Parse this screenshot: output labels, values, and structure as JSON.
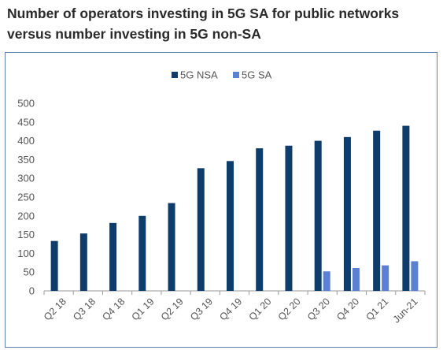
{
  "title_lines": [
    "Number of operators investing in 5G SA for public networks",
    "versus number investing in 5G non-SA"
  ],
  "colors": {
    "nsa": "#0e3d6b",
    "sa": "#5b7fd1",
    "gridline": "#d9d9d9",
    "axis": "#9a9a9a"
  },
  "chart_data": {
    "type": "bar",
    "title": "Number of operators investing in 5G SA for public networks versus number investing in 5G non-SA",
    "categories": [
      "Q2 18",
      "Q3 18",
      "Q4 18",
      "Q1 19",
      "Q2 19",
      "Q3 19",
      "Q4 19",
      "Q1 20",
      "Q2 20",
      "Q3 20",
      "Q4 20",
      "Q1 21",
      "Jun-21"
    ],
    "series": [
      {
        "name": "5G NSA",
        "values": [
          133,
          153,
          181,
          200,
          234,
          327,
          346,
          380,
          387,
          400,
          410,
          427,
          440
        ]
      },
      {
        "name": "5G SA",
        "values": [
          null,
          null,
          null,
          null,
          null,
          null,
          null,
          null,
          null,
          52,
          61,
          68,
          79
        ]
      }
    ],
    "ylim": [
      0,
      500
    ],
    "yticks": [
      0,
      50,
      100,
      150,
      200,
      250,
      300,
      350,
      400,
      450,
      500
    ],
    "grid": false,
    "legend_position": "top-center",
    "xlabel": "",
    "ylabel": ""
  }
}
